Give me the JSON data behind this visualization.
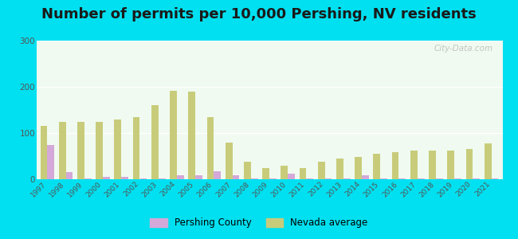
{
  "title": "Number of permits per 10,000 Pershing, NV residents",
  "years": [
    1997,
    1998,
    1999,
    2000,
    2001,
    2002,
    2003,
    2004,
    2005,
    2006,
    2007,
    2008,
    2009,
    2010,
    2011,
    2012,
    2013,
    2014,
    2015,
    2016,
    2017,
    2018,
    2019,
    2020,
    2021
  ],
  "pershing": [
    75,
    15,
    2,
    5,
    5,
    2,
    2,
    8,
    8,
    18,
    8,
    2,
    2,
    12,
    2,
    2,
    2,
    8,
    2,
    2,
    2,
    2,
    2,
    2,
    2
  ],
  "nevada": [
    115,
    125,
    125,
    125,
    130,
    135,
    160,
    192,
    190,
    135,
    80,
    38,
    25,
    30,
    25,
    38,
    45,
    48,
    55,
    58,
    62,
    62,
    62,
    65,
    78
  ],
  "pershing_color": "#d4a8d8",
  "nevada_color": "#c8cc7a",
  "background_top": "#f0faf0",
  "background_bottom": "#e0f5d0",
  "outer_background": "#00e0f0",
  "ylim": [
    0,
    300
  ],
  "yticks": [
    0,
    100,
    200,
    300
  ],
  "bar_width": 0.38,
  "title_fontsize": 13,
  "legend_pershing": "Pershing County",
  "legend_nevada": "Nevada average"
}
